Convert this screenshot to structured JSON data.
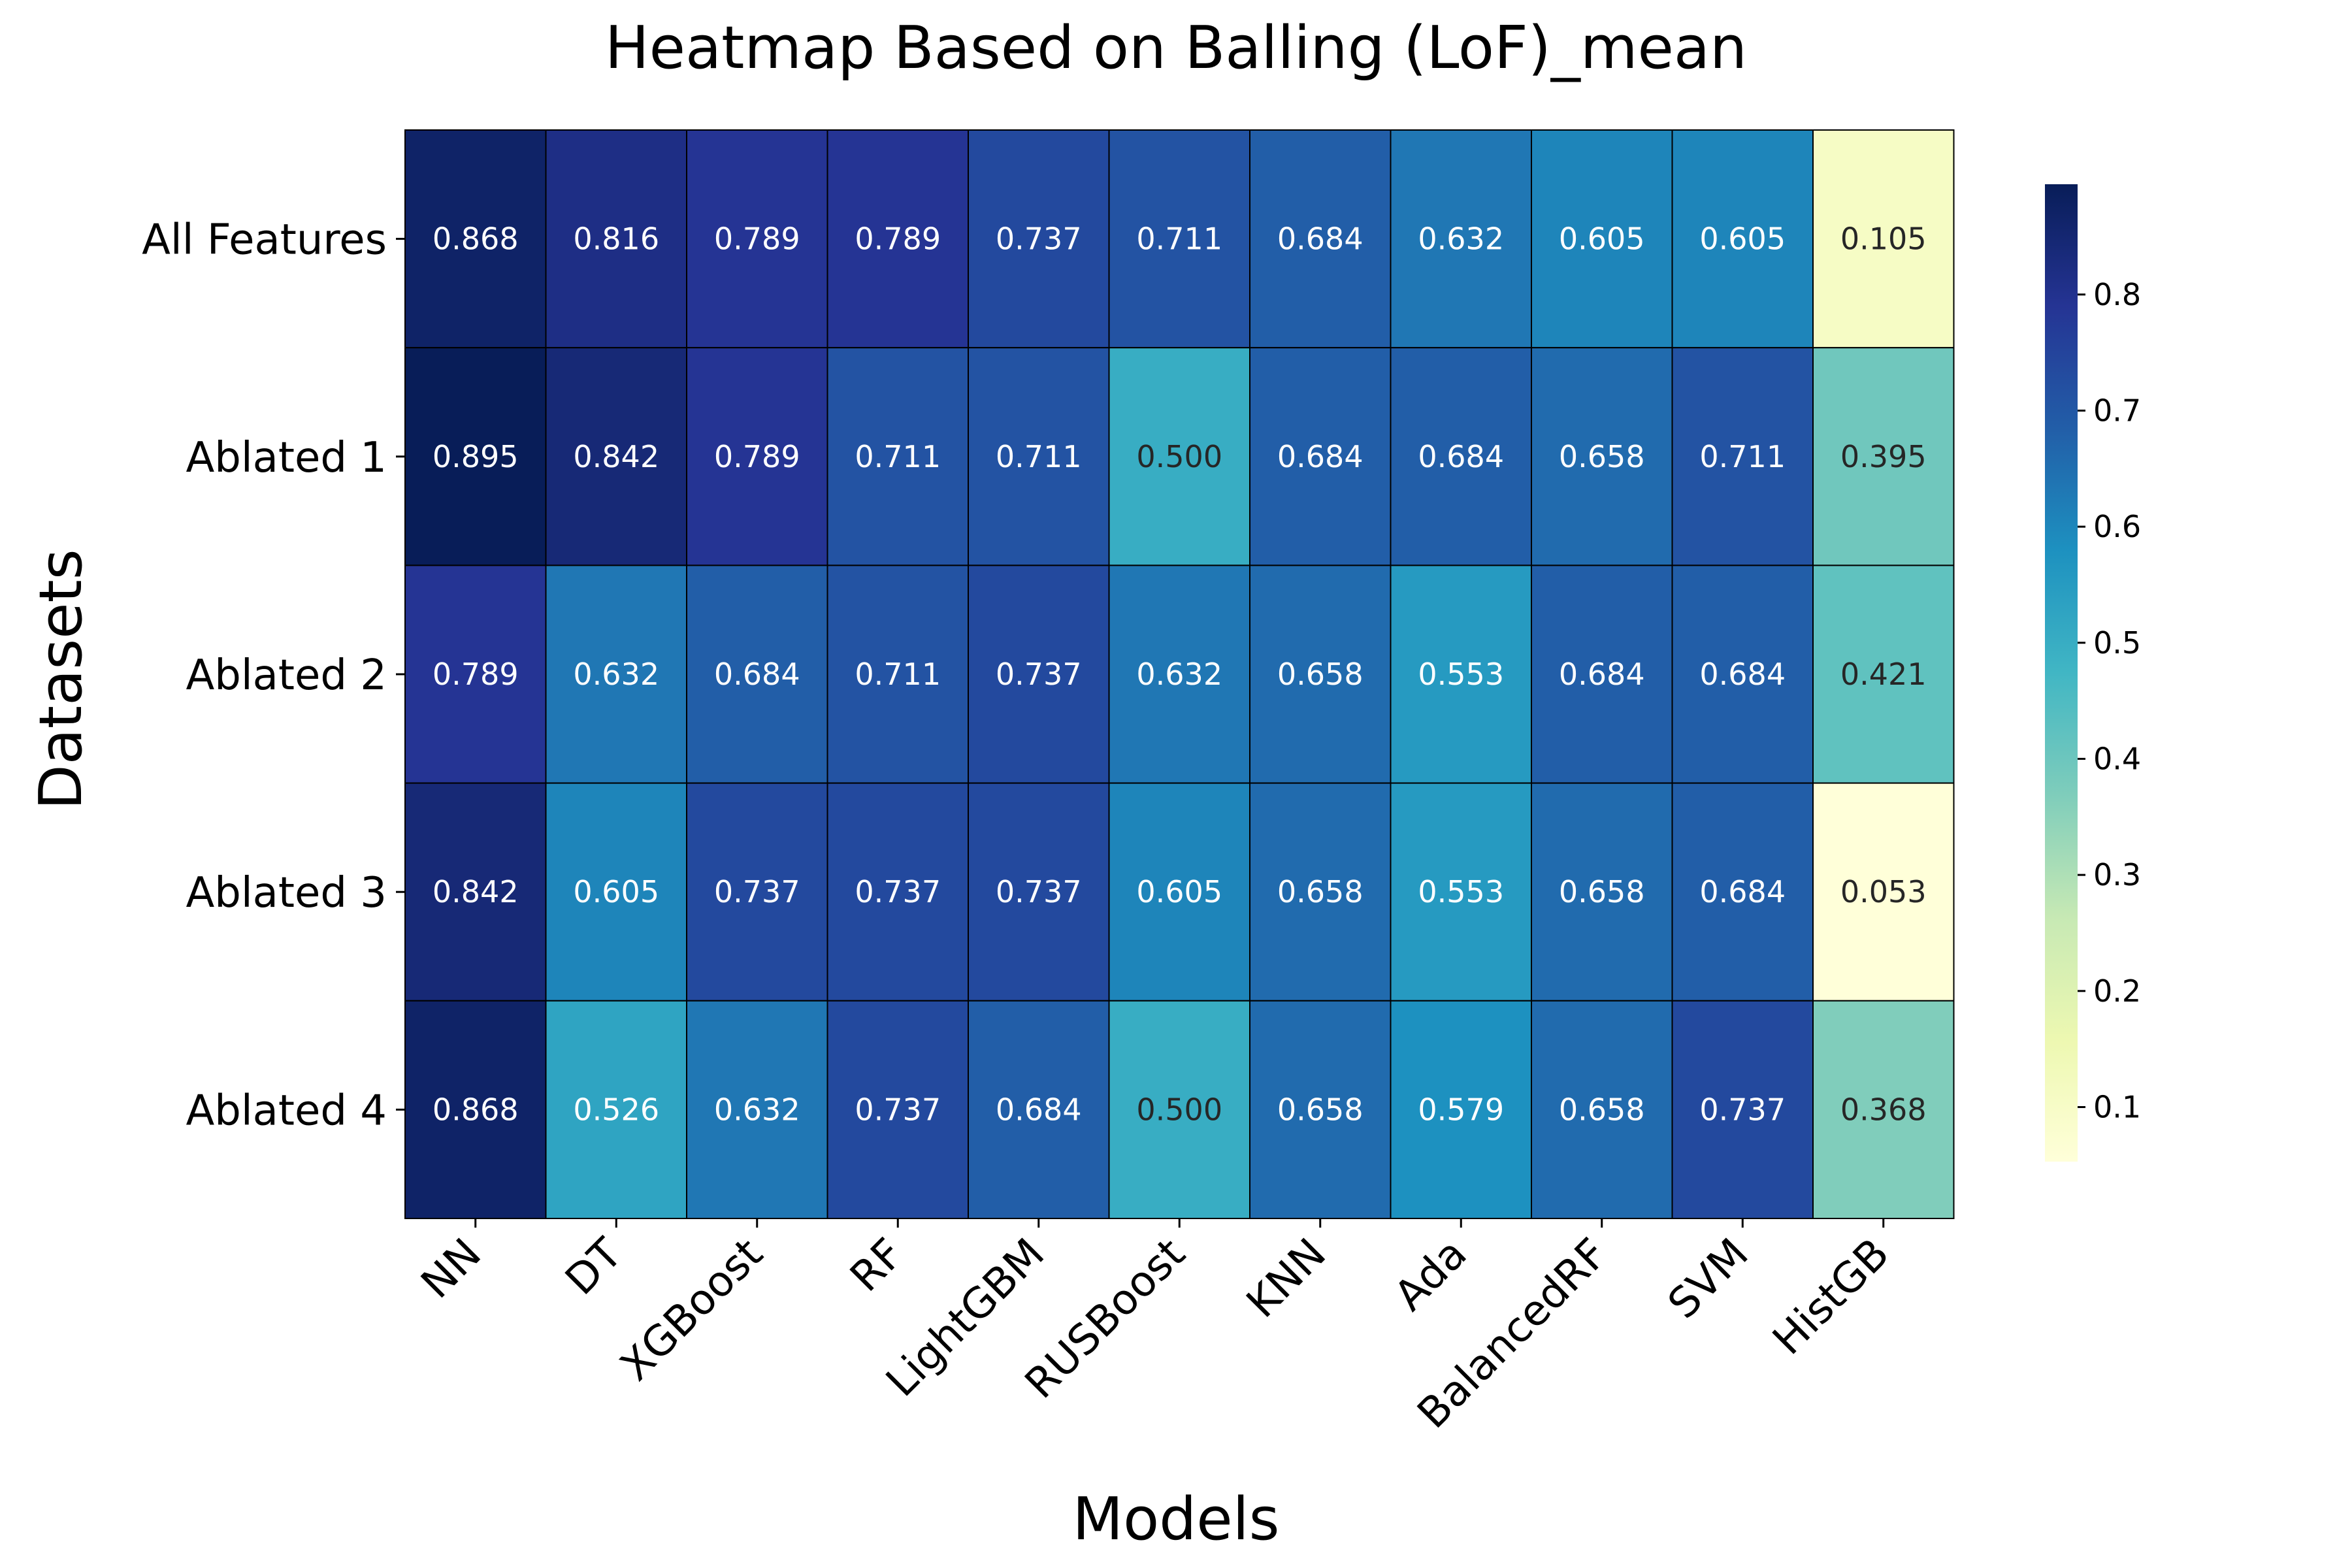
{
  "chart_data": {
    "type": "heatmap",
    "title": "Heatmap Based on Balling (LoF)_mean",
    "xlabel": "Models",
    "ylabel": "Datasets",
    "x": [
      "NN",
      "DT",
      "XGBoost",
      "RF",
      "LightGBM",
      "RUSBoost",
      "KNN",
      "Ada",
      "BalancedRF",
      "SVM",
      "HistGB"
    ],
    "y": [
      "All Features",
      "Ablated 1",
      "Ablated 2",
      "Ablated 3",
      "Ablated 4"
    ],
    "values": [
      [
        0.868,
        0.816,
        0.789,
        0.789,
        0.737,
        0.711,
        0.684,
        0.632,
        0.605,
        0.605,
        0.105
      ],
      [
        0.895,
        0.842,
        0.789,
        0.711,
        0.711,
        0.5,
        0.684,
        0.684,
        0.658,
        0.711,
        0.395
      ],
      [
        0.789,
        0.632,
        0.684,
        0.711,
        0.737,
        0.632,
        0.658,
        0.553,
        0.684,
        0.684,
        0.421
      ],
      [
        0.842,
        0.605,
        0.737,
        0.737,
        0.737,
        0.605,
        0.658,
        0.553,
        0.658,
        0.684,
        0.053
      ],
      [
        0.868,
        0.526,
        0.632,
        0.737,
        0.684,
        0.5,
        0.658,
        0.579,
        0.658,
        0.737,
        0.368
      ]
    ],
    "value_labels": [
      [
        "0.868",
        "0.816",
        "0.789",
        "0.789",
        "0.737",
        "0.711",
        "0.684",
        "0.632",
        "0.605",
        "0.605",
        "0.105"
      ],
      [
        "0.895",
        "0.842",
        "0.789",
        "0.711",
        "0.711",
        "0.500",
        "0.684",
        "0.684",
        "0.658",
        "0.711",
        "0.395"
      ],
      [
        "0.789",
        "0.632",
        "0.684",
        "0.711",
        "0.737",
        "0.632",
        "0.658",
        "0.553",
        "0.684",
        "0.684",
        "0.421"
      ],
      [
        "0.842",
        "0.605",
        "0.737",
        "0.737",
        "0.737",
        "0.605",
        "0.658",
        "0.553",
        "0.658",
        "0.684",
        "0.053"
      ],
      [
        "0.868",
        "0.526",
        "0.632",
        "0.737",
        "0.684",
        "0.500",
        "0.658",
        "0.579",
        "0.658",
        "0.737",
        "0.368"
      ]
    ],
    "colorscale": "YlGnBu",
    "color_range": [
      0.053,
      0.895
    ],
    "colorbar_ticks": [
      0.1,
      0.2,
      0.3,
      0.4,
      0.5,
      0.6,
      0.7,
      0.8
    ],
    "colorbar_tick_labels": [
      "0.1",
      "0.2",
      "0.3",
      "0.4",
      "0.5",
      "0.6",
      "0.7",
      "0.8"
    ],
    "grid": false,
    "legend": "colorbar-right"
  },
  "colors": {
    "ylgnbu": [
      "#ffffd9",
      "#edf8b1",
      "#c7e9b4",
      "#7fcdbb",
      "#41b6c4",
      "#1d91c0",
      "#225ea8",
      "#253494",
      "#081d58"
    ],
    "cell_border": "#000000",
    "light_text": "#ffffff",
    "dark_text": "#262626"
  }
}
